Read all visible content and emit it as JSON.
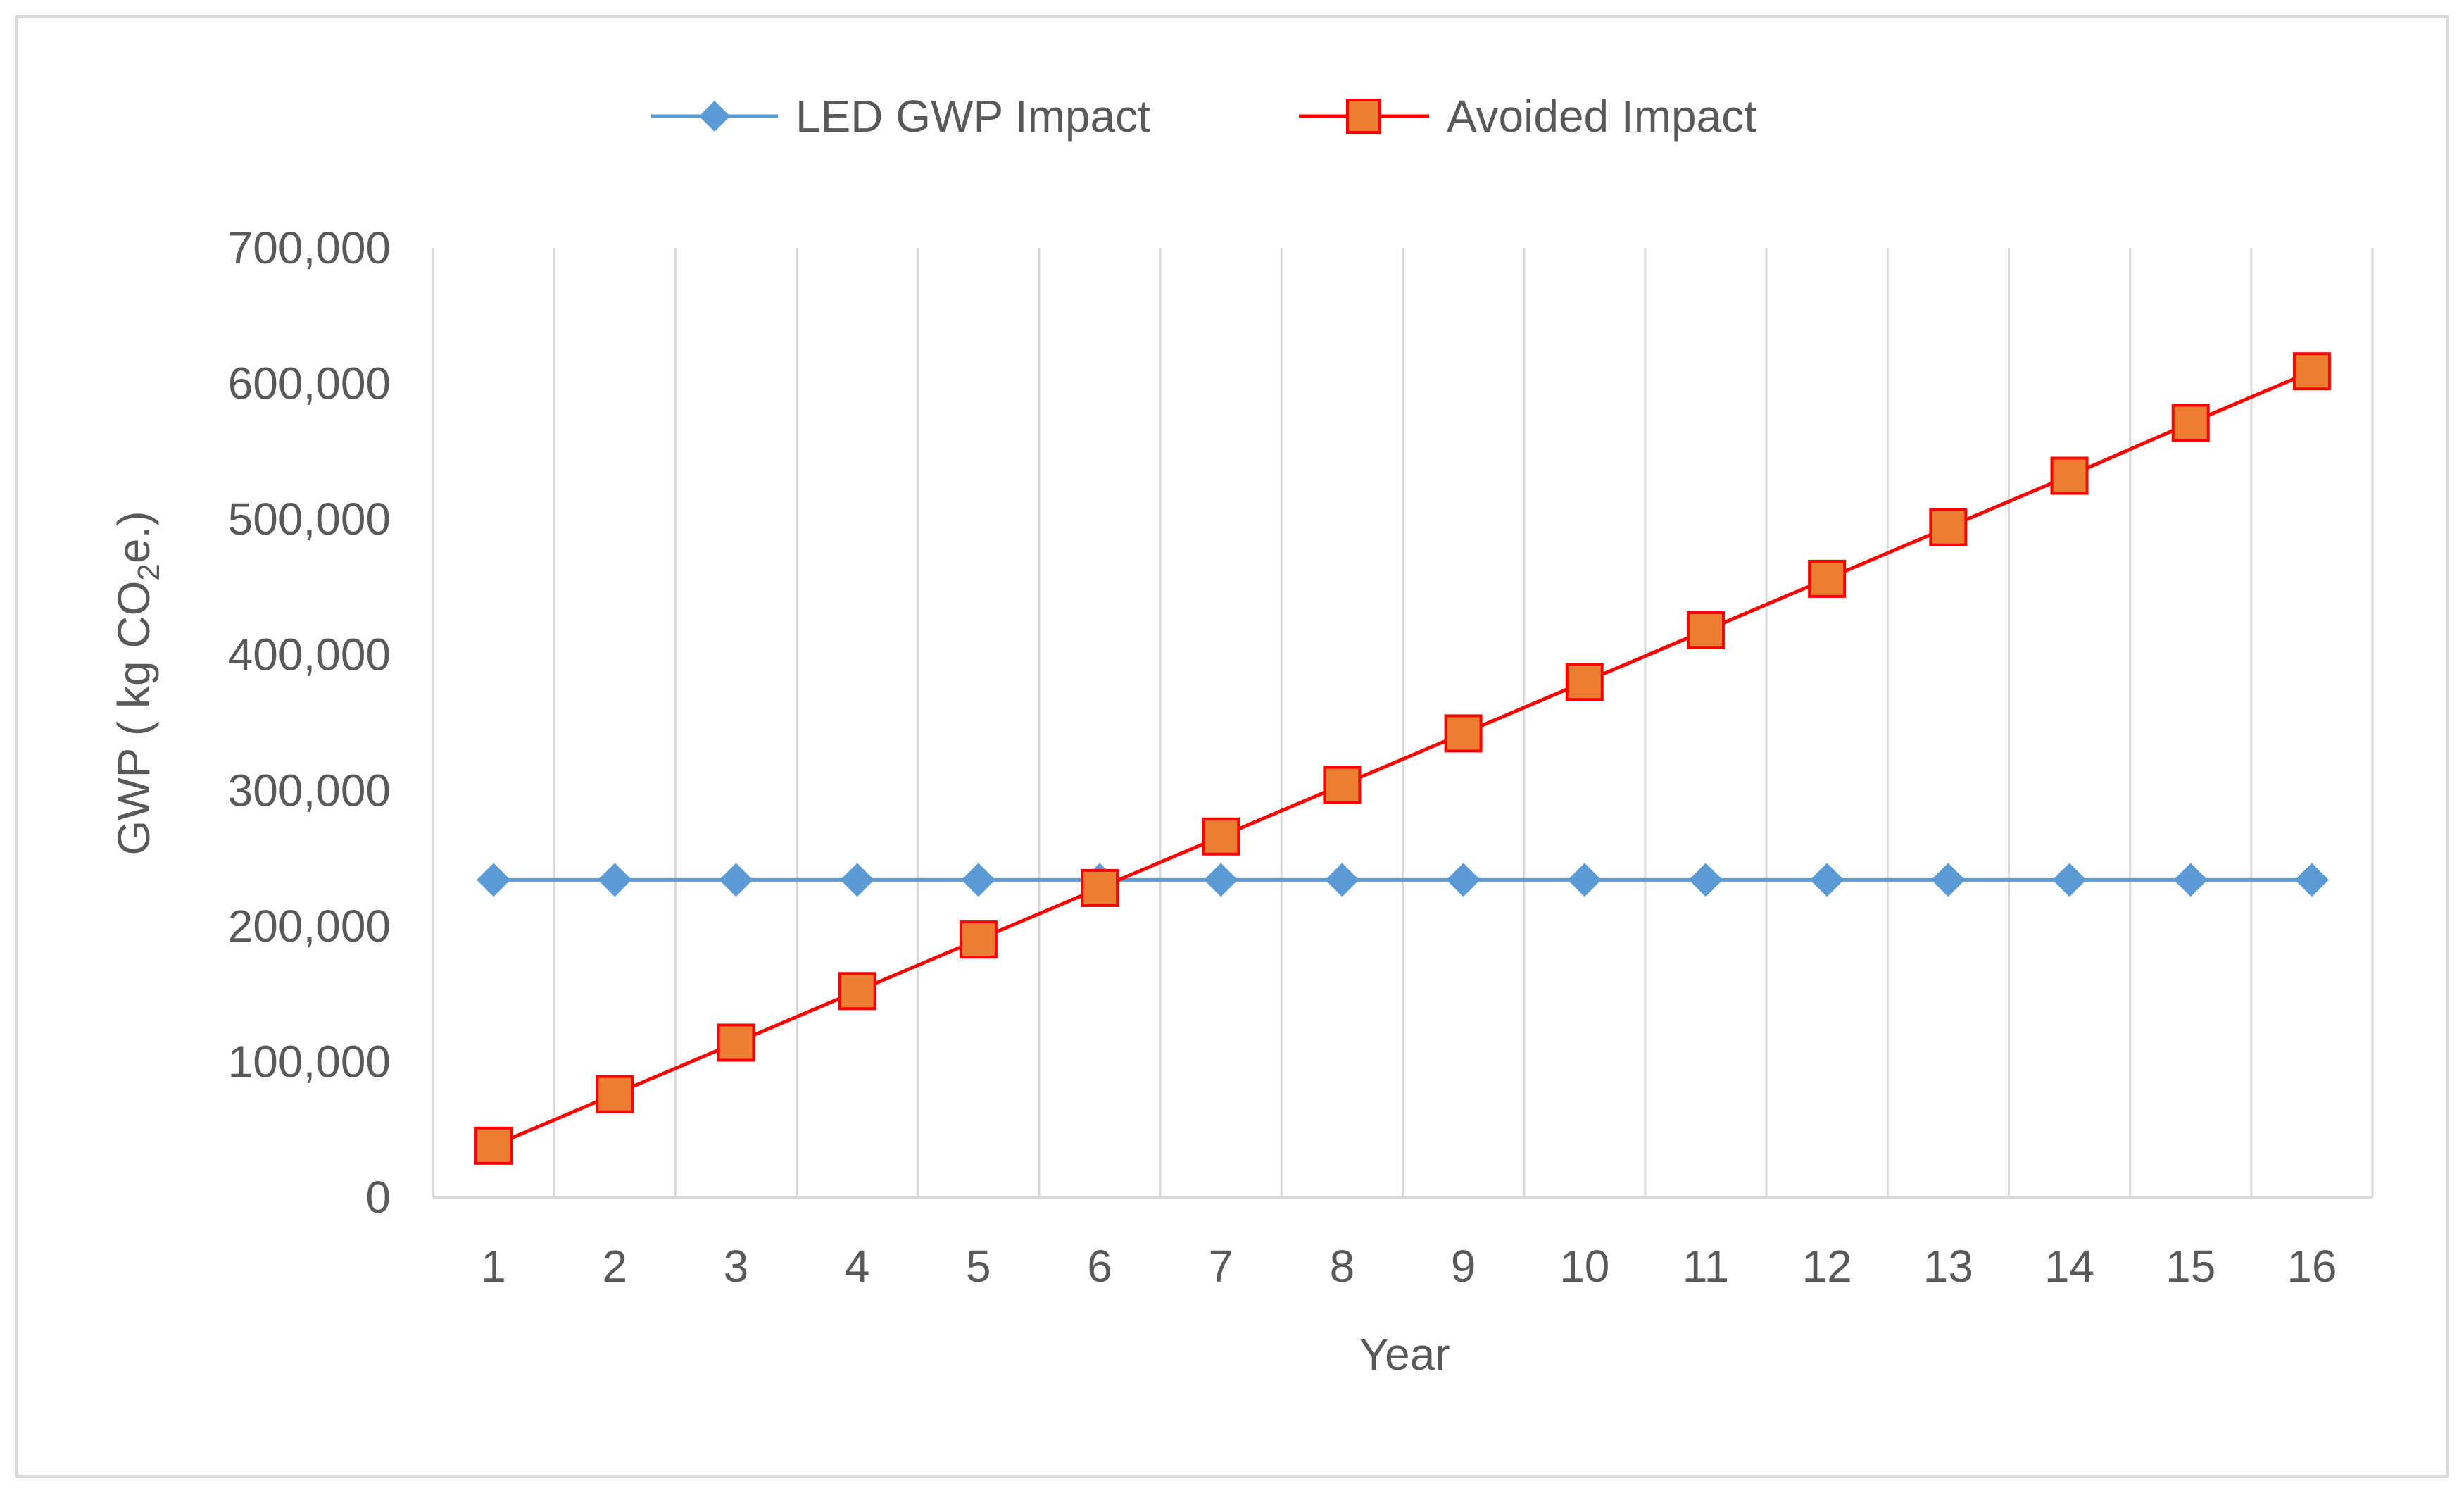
{
  "chart_data": {
    "type": "line",
    "title": "",
    "xlabel": "Year",
    "ylabel": {
      "prefix": "GWP ( kg CO",
      "subscript": "2",
      "suffix": "e.)"
    },
    "x": [
      1,
      2,
      3,
      4,
      5,
      6,
      7,
      8,
      9,
      10,
      11,
      12,
      13,
      14,
      15,
      16
    ],
    "x_tick_labels": [
      "1",
      "2",
      "3",
      "4",
      "5",
      "6",
      "7",
      "8",
      "9",
      "10",
      "11",
      "12",
      "13",
      "14",
      "15",
      "16"
    ],
    "ylim": [
      0,
      700000
    ],
    "y_ticks": [
      0,
      100000,
      200000,
      300000,
      400000,
      500000,
      600000,
      700000
    ],
    "y_tick_labels": [
      "0",
      "100,000",
      "200,000",
      "300,000",
      "400,000",
      "500,000",
      "600,000",
      "700,000"
    ],
    "grid": {
      "vertical": true,
      "horizontal": false
    },
    "legend": {
      "position": "top-center"
    },
    "series": [
      {
        "name": "LED GWP Impact",
        "marker": "diamond",
        "color": "#5b9bd5",
        "values": [
          234000,
          234000,
          234000,
          234000,
          234000,
          234000,
          234000,
          234000,
          234000,
          234000,
          234000,
          234000,
          234000,
          234000,
          234000,
          234000
        ]
      },
      {
        "name": "Avoided Impact",
        "marker": "square",
        "color": "#ff0000",
        "fill": "#ed7d31",
        "values": [
          38000,
          76000,
          114000,
          152000,
          190000,
          228000,
          266000,
          304000,
          342000,
          380000,
          418000,
          456000,
          494000,
          532000,
          571000,
          609000
        ]
      }
    ]
  },
  "colors": {
    "axis_text": "#595959",
    "gridline": "#d9d9d9",
    "frame": "#d9d9d9"
  }
}
